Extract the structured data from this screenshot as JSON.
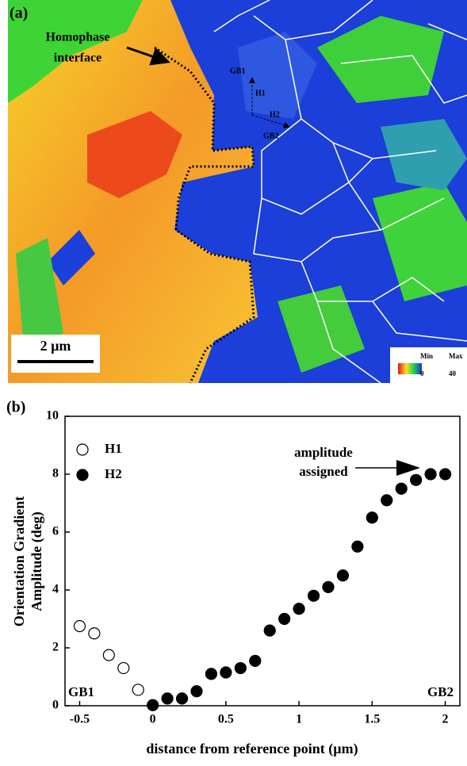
{
  "panel_a": {
    "label": "(a)",
    "annotation": [
      "Homophase",
      "interface"
    ],
    "gb1": "GB1",
    "h1": "H1",
    "h2": "H2",
    "gb2": "GB2",
    "scale_bar": "2 µm",
    "colorbar": {
      "min_label": "Min",
      "max_label": "Max",
      "min": 0,
      "max": 40
    }
  },
  "chart_data": {
    "type": "scatter",
    "panel_label": "(b)",
    "xlabel": "distance from reference point (µm)",
    "ylabel": [
      "Orientation Gradient",
      "Amplitude (deg)"
    ],
    "xlim": [
      -0.6,
      2.1
    ],
    "ylim": [
      0,
      10
    ],
    "xticks": [
      -0.5,
      0,
      0.5,
      1,
      1.5,
      2
    ],
    "yticks": [
      0,
      2,
      4,
      6,
      8,
      10
    ],
    "legend": "top-left",
    "annotations": {
      "arrow_text": [
        "amplitude",
        "assigned"
      ],
      "left": "GB1",
      "right": "GB2"
    },
    "series": [
      {
        "name": "H1",
        "color": "#000000",
        "marker_fill": "#ffffff",
        "x": [
          -0.5,
          -0.4,
          -0.3,
          -0.2,
          -0.1
        ],
        "values": [
          2.75,
          2.5,
          1.75,
          1.3,
          0.55
        ]
      },
      {
        "name": "H2",
        "color": "#000000",
        "marker_fill": "#000000",
        "x": [
          0,
          0.1,
          0.2,
          0.3,
          0.4,
          0.5,
          0.6,
          0.7,
          0.8,
          0.9,
          1.0,
          1.1,
          1.2,
          1.3,
          1.4,
          1.5,
          1.6,
          1.7,
          1.8,
          1.9,
          2.0
        ],
        "values": [
          0.02,
          0.25,
          0.25,
          0.5,
          1.1,
          1.15,
          1.3,
          1.55,
          2.6,
          3.0,
          3.35,
          3.8,
          4.1,
          4.5,
          5.5,
          6.5,
          7.1,
          7.5,
          7.8,
          8.0,
          8.0
        ]
      }
    ]
  }
}
